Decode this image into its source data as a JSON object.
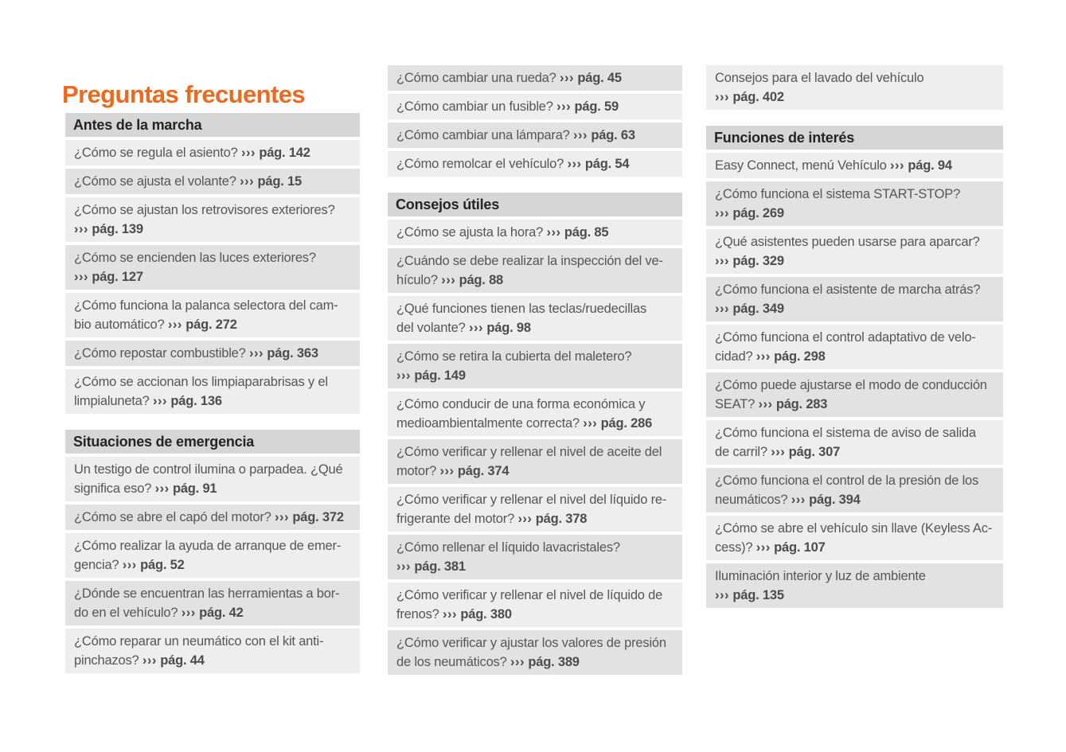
{
  "title": "Preguntas frecuentes",
  "reference": {
    "arrow": "›››",
    "page_label": "pág."
  },
  "colors": {
    "accent_orange": "#eb6a1f",
    "section_header_bg": "#d5d6d7",
    "row_light_bg": "#eeeeef",
    "row_dark_bg": "#e2e2e3",
    "body_text": "#55565a",
    "ref_text": "#4b4c4f",
    "header_text": "#232426",
    "page_bg": "#ffffff"
  },
  "columns": [
    {
      "name": "left",
      "blocks": [
        {
          "type": "header",
          "text": "Antes de la marcha"
        },
        {
          "type": "item",
          "shade": "light",
          "l1": "¿Cómo se regula el asiento?",
          "l2": null,
          "page": "142"
        },
        {
          "type": "item",
          "shade": "dark",
          "l1": "¿Cómo se ajusta el volante?",
          "l2": null,
          "page": "15"
        },
        {
          "type": "item",
          "shade": "light",
          "l1": "¿Cómo se ajustan los retrovisores exteriores?",
          "l2": "",
          "page": "139"
        },
        {
          "type": "item",
          "shade": "dark",
          "l1": "¿Cómo se encienden las luces exteriores?",
          "l2": "",
          "page": "127"
        },
        {
          "type": "item",
          "shade": "light",
          "l1": "¿Cómo funciona la palanca selectora del cam-",
          "l2": "bio automático?",
          "page": "272"
        },
        {
          "type": "item",
          "shade": "dark",
          "l1": "¿Cómo repostar combustible?",
          "l2": null,
          "page": "363"
        },
        {
          "type": "item",
          "shade": "light",
          "l1": "¿Cómo se accionan los limpiaparabrisas y el",
          "l2": "limpialuneta?",
          "page": "136"
        },
        {
          "type": "header",
          "text": "Situaciones de emergencia"
        },
        {
          "type": "item",
          "shade": "light",
          "l1": "Un testigo de control ilumina o parpadea. ¿Qué",
          "l2": "significa eso?",
          "page": "91"
        },
        {
          "type": "item",
          "shade": "dark",
          "l1": "¿Cómo se abre el capó del motor?",
          "l2": null,
          "page": "372"
        },
        {
          "type": "item",
          "shade": "light",
          "l1": "¿Cómo realizar la ayuda de arranque de emer-",
          "l2": "gencia?",
          "page": "52"
        },
        {
          "type": "item",
          "shade": "dark",
          "l1": "¿Dónde se encuentran las herramientas a bor-",
          "l2": "do en el vehículo?",
          "page": "42"
        },
        {
          "type": "item",
          "shade": "light",
          "l1": "¿Cómo reparar un neumático con el kit anti-",
          "l2": "pinchazos?",
          "page": "44"
        }
      ]
    },
    {
      "name": "middle",
      "blocks": [
        {
          "type": "item",
          "shade": "dark",
          "l1": "¿Cómo cambiar una rueda?",
          "l2": null,
          "page": "45"
        },
        {
          "type": "item",
          "shade": "light",
          "l1": "¿Cómo cambiar un fusible?",
          "l2": null,
          "page": "59"
        },
        {
          "type": "item",
          "shade": "dark",
          "l1": "¿Cómo cambiar una lámpara?",
          "l2": null,
          "page": "63"
        },
        {
          "type": "item",
          "shade": "light",
          "l1": "¿Cómo remolcar el vehículo?",
          "l2": null,
          "page": "54"
        },
        {
          "type": "header",
          "text": "Consejos útiles"
        },
        {
          "type": "item",
          "shade": "light",
          "l1": "¿Cómo se ajusta la hora?",
          "l2": null,
          "page": "85"
        },
        {
          "type": "item",
          "shade": "dark",
          "l1": "¿Cuándo se debe realizar la inspección del ve-",
          "l2": "hículo?",
          "page": "88"
        },
        {
          "type": "item",
          "shade": "light",
          "l1": "¿Qué funciones tienen las teclas/ruedecillas",
          "l2": "del volante?",
          "page": "98"
        },
        {
          "type": "item",
          "shade": "dark",
          "l1": "¿Cómo se retira la cubierta del maletero?",
          "l2": "",
          "page": "149"
        },
        {
          "type": "item",
          "shade": "light",
          "l1": "¿Cómo conducir de una forma económica y",
          "l2": "medioambientalmente correcta?",
          "page": "286"
        },
        {
          "type": "item",
          "shade": "dark",
          "l1": "¿Cómo verificar y rellenar el nivel de aceite del",
          "l2": "motor?",
          "page": "374"
        },
        {
          "type": "item",
          "shade": "light",
          "l1": "¿Cómo verificar y rellenar el nivel del líquido re-",
          "l2": "frigerante del motor?",
          "page": "378"
        },
        {
          "type": "item",
          "shade": "dark",
          "l1": "¿Cómo rellenar el líquido lavacristales?",
          "l2": "",
          "page": "381"
        },
        {
          "type": "item",
          "shade": "light",
          "l1": "¿Cómo verificar y rellenar el nivel de líquido de",
          "l2": "frenos?",
          "page": "380"
        },
        {
          "type": "item",
          "shade": "dark",
          "l1": "¿Cómo verificar y ajustar los valores de presión",
          "l2": "de los neumáticos?",
          "page": "389"
        }
      ]
    },
    {
      "name": "right",
      "blocks": [
        {
          "type": "item",
          "shade": "light",
          "l1": "Consejos para el lavado del vehículo",
          "l2": "",
          "page": "402"
        },
        {
          "type": "header",
          "text": "Funciones de interés"
        },
        {
          "type": "item",
          "shade": "light",
          "l1": "Easy Connect, menú Vehículo",
          "l2": null,
          "page": "94"
        },
        {
          "type": "item",
          "shade": "dark",
          "l1": "¿Cómo funciona el sistema START-STOP?",
          "l2": "",
          "page": "269"
        },
        {
          "type": "item",
          "shade": "light",
          "l1": "¿Qué asistentes pueden usarse para aparcar?",
          "l2": "",
          "page": "329"
        },
        {
          "type": "item",
          "shade": "dark",
          "l1": "¿Cómo funciona el asistente de marcha atrás?",
          "l2": "",
          "page": "349"
        },
        {
          "type": "item",
          "shade": "light",
          "l1": "¿Cómo funciona el control adaptativo de velo-",
          "l2": "cidad?",
          "page": "298"
        },
        {
          "type": "item",
          "shade": "dark",
          "l1": "¿Cómo puede ajustarse el modo de conducción",
          "l2": "SEAT?",
          "page": "283"
        },
        {
          "type": "item",
          "shade": "light",
          "l1": "¿Cómo funciona el sistema de aviso de salida",
          "l2": "de carril?",
          "page": "307"
        },
        {
          "type": "item",
          "shade": "dark",
          "l1": "¿Cómo funciona el control de la presión de los",
          "l2": "neumáticos?",
          "page": "394"
        },
        {
          "type": "item",
          "shade": "light",
          "l1": "¿Cómo se abre el vehículo sin llave (Keyless Ac-",
          "l2": "cess)?",
          "page": "107"
        },
        {
          "type": "item",
          "shade": "dark",
          "l1": "Iluminación interior y luz de ambiente",
          "l2": "",
          "page": "135"
        }
      ]
    }
  ]
}
